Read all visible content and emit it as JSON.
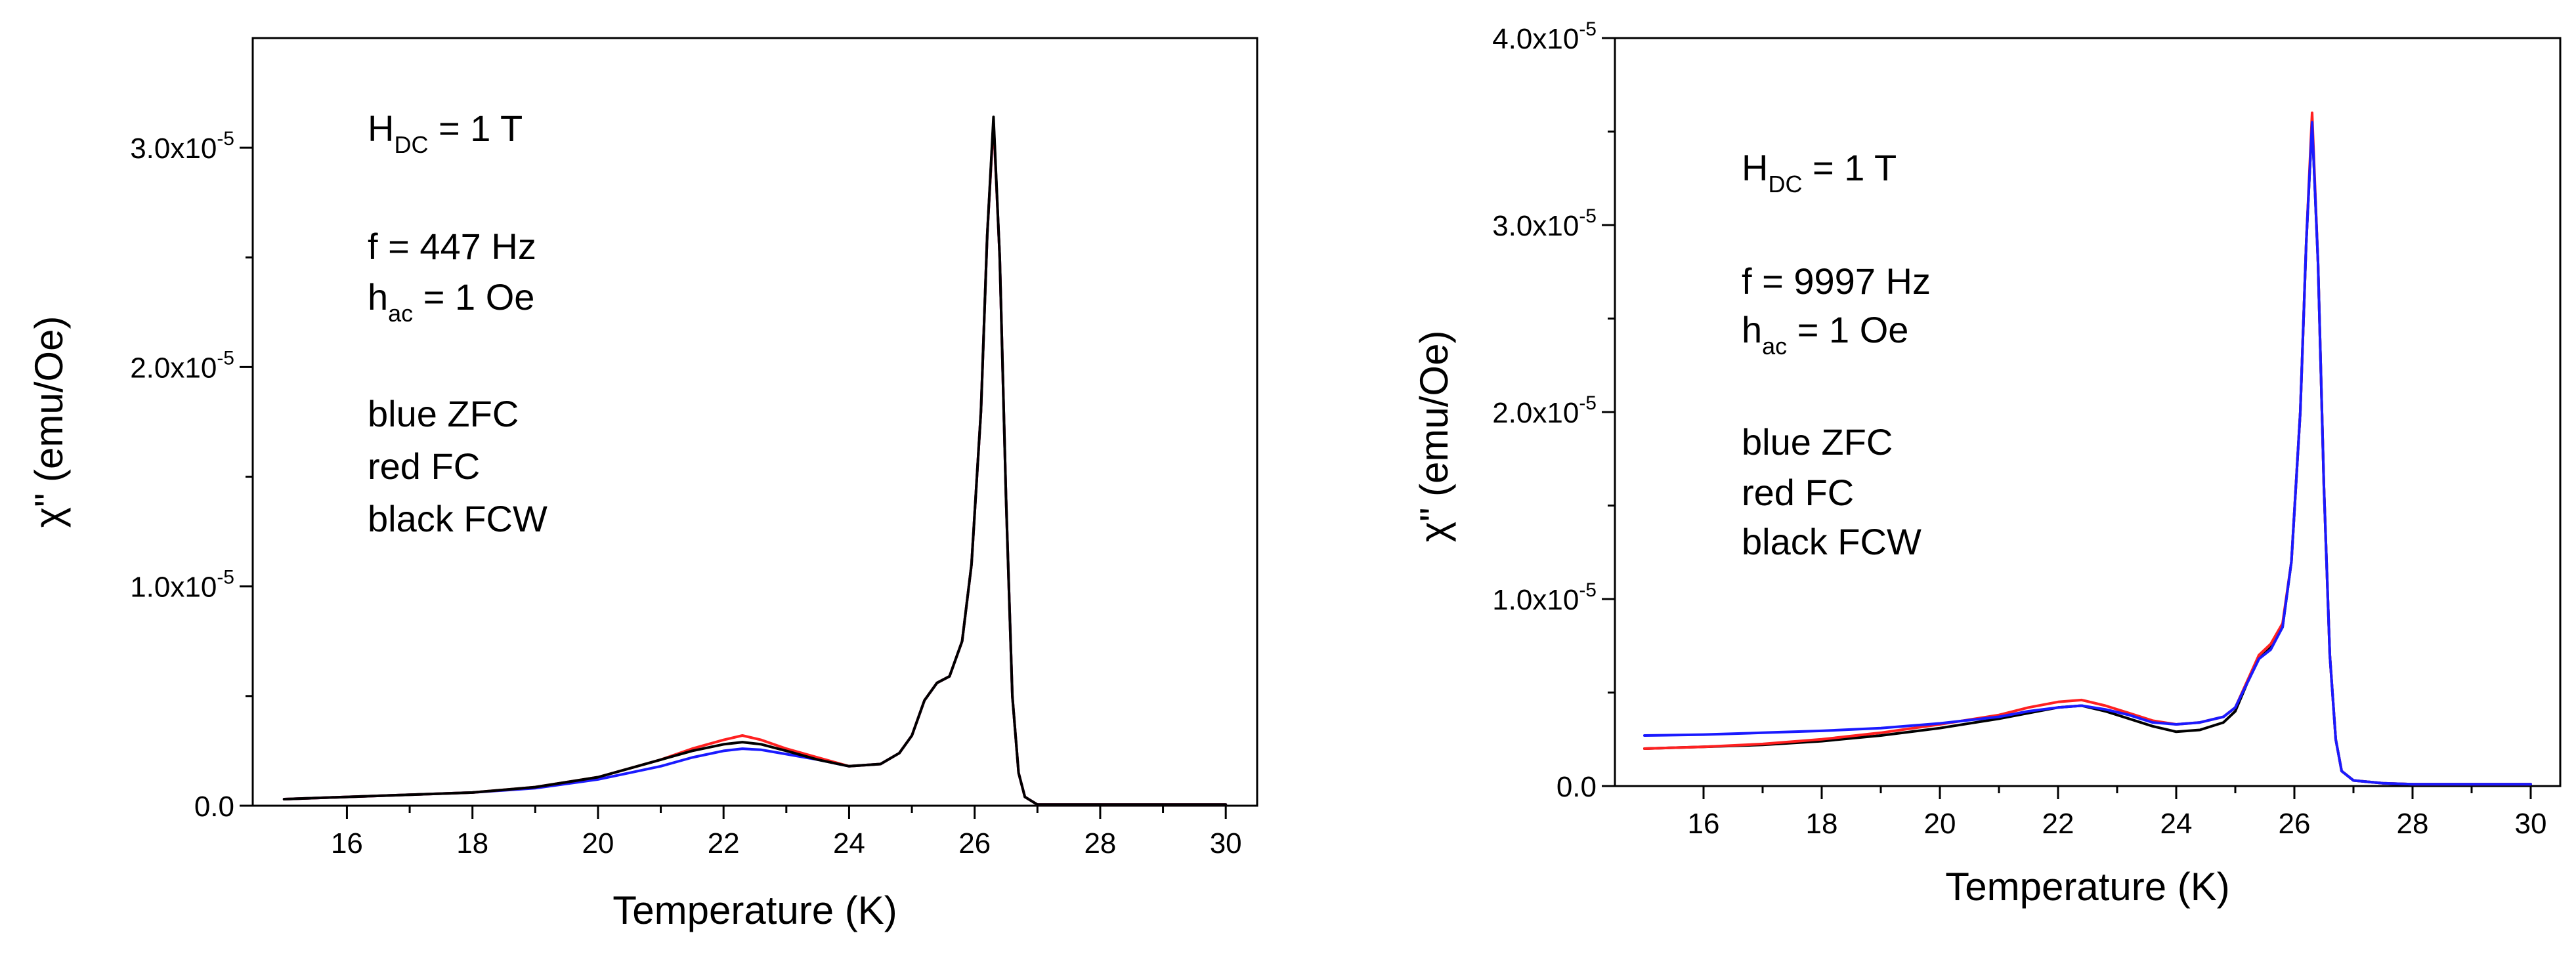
{
  "chart_data": [
    {
      "type": "line",
      "xlabel": "Temperature (K)",
      "ylabel": "χ\" (emu/Oe)",
      "xlim": [
        14.5,
        30.5
      ],
      "ylim": [
        0,
        3.5e-05
      ],
      "x_ticks": [
        16,
        18,
        20,
        22,
        24,
        26,
        28,
        30
      ],
      "x_tick_labels": [
        "16",
        "18",
        "20",
        "22",
        "24",
        "26",
        "28",
        "30"
      ],
      "y_ticks": [
        0,
        1e-05,
        2e-05,
        3e-05
      ],
      "y_tick_labels": [
        {
          "mantissa": "0.0",
          "exp": ""
        },
        {
          "mantissa": "1.0x10",
          "exp": "-5"
        },
        {
          "mantissa": "2.0x10",
          "exp": "-5"
        },
        {
          "mantissa": "3.0x10",
          "exp": "-5"
        }
      ],
      "annotations": {
        "field_main": "H",
        "field_sub": "DC",
        "field_rest": " = 1 T",
        "freq": "f = 447 Hz",
        "hac_main": "h",
        "hac_sub": "ac",
        "hac_rest": " = 1 Oe",
        "legend_blue": "blue ZFC",
        "legend_red": "red FC",
        "legend_black": "black FCW"
      },
      "series": [
        {
          "name": "blue ZFC",
          "color": "#1a1aff",
          "x": [
            15,
            16,
            17,
            18,
            19,
            20,
            20.5,
            21,
            21.5,
            22,
            22.3,
            22.6,
            23,
            23.5,
            24,
            24.5,
            24.8,
            25,
            25.2,
            25.4,
            25.6,
            25.8,
            25.95,
            26.1,
            26.2,
            26.3,
            26.4,
            26.5,
            26.6,
            26.7,
            26.8,
            27,
            28,
            29,
            30
          ],
          "y": [
            3e-07,
            4e-07,
            5e-07,
            6e-07,
            8e-07,
            1.2e-06,
            1.5e-06,
            1.8e-06,
            2.2e-06,
            2.5e-06,
            2.6e-06,
            2.55e-06,
            2.35e-06,
            2.1e-06,
            1.8e-06,
            1.9e-06,
            2.4e-06,
            3.2e-06,
            4.8e-06,
            5.6e-06,
            5.9e-06,
            7.5e-06,
            1.1e-05,
            1.8e-05,
            2.6e-05,
            3.12e-05,
            2.5e-05,
            1.4e-05,
            5e-06,
            1.5e-06,
            4e-07,
            5e-08,
            5e-08,
            5e-08,
            5e-08
          ]
        },
        {
          "name": "red FC",
          "color": "#ff2020",
          "x": [
            15,
            16,
            17,
            18,
            19,
            20,
            20.5,
            21,
            21.5,
            22,
            22.3,
            22.6,
            23,
            23.5,
            24,
            24.5,
            24.8,
            25,
            25.2,
            25.4,
            25.6,
            25.8,
            25.95,
            26.1,
            26.2,
            26.3,
            26.4,
            26.5,
            26.6,
            26.7,
            26.8,
            27,
            28,
            29,
            30
          ],
          "y": [
            3e-07,
            4e-07,
            5e-07,
            6e-07,
            8.5e-07,
            1.3e-06,
            1.7e-06,
            2.1e-06,
            2.6e-06,
            3e-06,
            3.2e-06,
            3e-06,
            2.6e-06,
            2.2e-06,
            1.8e-06,
            1.9e-06,
            2.4e-06,
            3.2e-06,
            4.8e-06,
            5.6e-06,
            5.9e-06,
            7.5e-06,
            1.1e-05,
            1.8e-05,
            2.6e-05,
            3.12e-05,
            2.5e-05,
            1.4e-05,
            5e-06,
            1.5e-06,
            4e-07,
            5e-08,
            5e-08,
            5e-08,
            5e-08
          ]
        },
        {
          "name": "black FCW",
          "color": "#000000",
          "x": [
            15,
            16,
            17,
            18,
            19,
            20,
            20.5,
            21,
            21.5,
            22,
            22.3,
            22.6,
            23,
            23.5,
            24,
            24.5,
            24.8,
            25,
            25.2,
            25.4,
            25.6,
            25.8,
            25.95,
            26.1,
            26.2,
            26.3,
            26.4,
            26.5,
            26.6,
            26.7,
            26.8,
            27,
            28,
            29,
            30
          ],
          "y": [
            3e-07,
            4e-07,
            5e-07,
            6e-07,
            8.5e-07,
            1.3e-06,
            1.7e-06,
            2.1e-06,
            2.5e-06,
            2.8e-06,
            2.9e-06,
            2.8e-06,
            2.5e-06,
            2.1e-06,
            1.8e-06,
            1.9e-06,
            2.4e-06,
            3.2e-06,
            4.8e-06,
            5.6e-06,
            5.9e-06,
            7.5e-06,
            1.1e-05,
            1.8e-05,
            2.6e-05,
            3.14e-05,
            2.5e-05,
            1.4e-05,
            5e-06,
            1.5e-06,
            4e-07,
            5e-08,
            5e-08,
            5e-08,
            5e-08
          ]
        }
      ]
    },
    {
      "type": "line",
      "xlabel": "Temperature (K)",
      "ylabel": "χ\" (emu/Oe)",
      "xlim": [
        14.5,
        30.5
      ],
      "ylim": [
        0,
        4e-05
      ],
      "x_ticks": [
        16,
        18,
        20,
        22,
        24,
        26,
        28,
        30
      ],
      "x_tick_labels": [
        "16",
        "18",
        "20",
        "22",
        "24",
        "26",
        "28",
        "30"
      ],
      "y_ticks": [
        0,
        1e-05,
        2e-05,
        3e-05,
        4e-05
      ],
      "y_tick_labels": [
        {
          "mantissa": "0.0",
          "exp": ""
        },
        {
          "mantissa": "1.0x10",
          "exp": "-5"
        },
        {
          "mantissa": "2.0x10",
          "exp": "-5"
        },
        {
          "mantissa": "3.0x10",
          "exp": "-5"
        },
        {
          "mantissa": "4.0x10",
          "exp": "-5"
        }
      ],
      "annotations": {
        "field_main": "H",
        "field_sub": "DC",
        "field_rest": " = 1 T",
        "freq": "f = 9997 Hz",
        "hac_main": "h",
        "hac_sub": "ac",
        "hac_rest": " = 1 Oe",
        "legend_blue": "blue ZFC",
        "legend_red": "red FC",
        "legend_black": "black FCW"
      },
      "series": [
        {
          "name": "black FCW",
          "color": "#000000",
          "x": [
            15,
            16,
            17,
            18,
            19,
            20,
            21,
            21.5,
            22,
            22.4,
            22.8,
            23.2,
            23.6,
            24,
            24.4,
            24.8,
            25,
            25.2,
            25.4,
            25.6,
            25.8,
            25.95,
            26.1,
            26.2,
            26.3,
            26.4,
            26.5,
            26.6,
            26.7,
            26.8,
            27,
            27.5,
            28,
            29,
            30
          ],
          "y": [
            2e-06,
            2.1e-06,
            2.2e-06,
            2.4e-06,
            2.7e-06,
            3.1e-06,
            3.6e-06,
            3.9e-06,
            4.2e-06,
            4.3e-06,
            4e-06,
            3.6e-06,
            3.2e-06,
            2.9e-06,
            3e-06,
            3.4e-06,
            4e-06,
            5.5e-06,
            6.8e-06,
            7.4e-06,
            8.5e-06,
            1.2e-05,
            2e-05,
            2.9e-05,
            3.55e-05,
            2.8e-05,
            1.6e-05,
            7e-06,
            2.5e-06,
            8e-07,
            3e-07,
            1.5e-07,
            1e-07,
            1e-07,
            1e-07
          ]
        },
        {
          "name": "red FC",
          "color": "#ff2020",
          "x": [
            15,
            16,
            17,
            18,
            19,
            20,
            21,
            21.5,
            22,
            22.4,
            22.8,
            23.2,
            23.6,
            24,
            24.4,
            24.8,
            25,
            25.2,
            25.4,
            25.6,
            25.8,
            25.95,
            26.1,
            26.2,
            26.3,
            26.4,
            26.5,
            26.6,
            26.7,
            26.8,
            27,
            27.5,
            28,
            29,
            30
          ],
          "y": [
            2e-06,
            2.1e-06,
            2.25e-06,
            2.5e-06,
            2.85e-06,
            3.3e-06,
            3.8e-06,
            4.2e-06,
            4.5e-06,
            4.6e-06,
            4.3e-06,
            3.9e-06,
            3.5e-06,
            3.3e-06,
            3.4e-06,
            3.7e-06,
            4.2e-06,
            5.6e-06,
            7e-06,
            7.6e-06,
            8.7e-06,
            1.2e-05,
            2e-05,
            2.9e-05,
            3.6e-05,
            2.8e-05,
            1.6e-05,
            7e-06,
            2.5e-06,
            8e-07,
            3e-07,
            1.5e-07,
            1e-07,
            1e-07,
            1e-07
          ]
        },
        {
          "name": "blue ZFC",
          "color": "#1a1aff",
          "x": [
            15,
            16,
            17,
            18,
            19,
            20,
            21,
            21.5,
            22,
            22.4,
            22.8,
            23.2,
            23.6,
            24,
            24.4,
            24.8,
            25,
            25.2,
            25.4,
            25.6,
            25.8,
            25.95,
            26.1,
            26.2,
            26.3,
            26.4,
            26.5,
            26.6,
            26.7,
            26.8,
            27,
            27.5,
            28,
            29,
            30
          ],
          "y": [
            2.7e-06,
            2.75e-06,
            2.85e-06,
            2.95e-06,
            3.1e-06,
            3.35e-06,
            3.7e-06,
            4e-06,
            4.2e-06,
            4.3e-06,
            4.1e-06,
            3.8e-06,
            3.4e-06,
            3.3e-06,
            3.4e-06,
            3.7e-06,
            4.2e-06,
            5.5e-06,
            6.8e-06,
            7.3e-06,
            8.5e-06,
            1.2e-05,
            2e-05,
            2.9e-05,
            3.55e-05,
            2.8e-05,
            1.6e-05,
            7e-06,
            2.5e-06,
            8e-07,
            3e-07,
            1.5e-07,
            1e-07,
            1e-07,
            1e-07
          ]
        }
      ]
    }
  ]
}
